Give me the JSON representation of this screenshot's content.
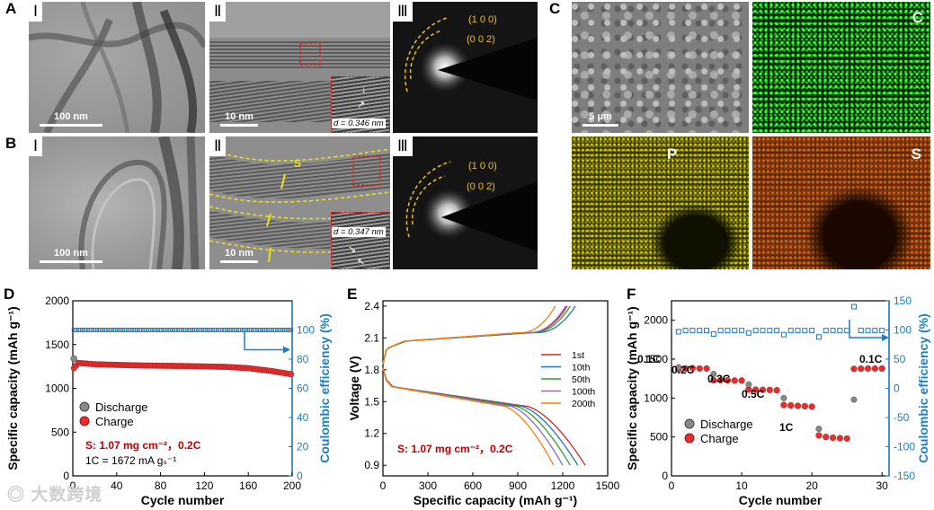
{
  "panel_labels": {
    "A": "A",
    "B": "B",
    "C": "C",
    "D": "D",
    "E": "E",
    "F": "F"
  },
  "panels": {
    "A": {
      "roman": [
        "Ⅰ",
        "Ⅱ",
        "Ⅲ"
      ],
      "scalebars": [
        "100 nm",
        "10 nm"
      ],
      "d_spacing": "d = 0.346 nm",
      "diffraction": [
        "(1 0 0)",
        "(0 0 2)"
      ]
    },
    "B": {
      "roman": [
        "Ⅰ",
        "Ⅱ",
        "Ⅲ"
      ],
      "scalebars": [
        "100 nm",
        "10 nm"
      ],
      "d_spacing": "d = 0.347 nm",
      "s_label": "S",
      "diffraction": [
        "(1 0 0)",
        "(0 0 2)"
      ]
    },
    "C": {
      "scalebar": "5 μm",
      "elements": [
        "C",
        "P",
        "S"
      ]
    }
  },
  "colors": {
    "red": "#d62728",
    "blue": "#1f77b4",
    "yellow": "#f0c020",
    "green": "#18c018",
    "olive": "#a8a400",
    "orange": "#c05a10",
    "darkred": "#c00000",
    "axisblue": "#1a7fc4"
  },
  "watermark": "大数跨境",
  "chart_data": [
    {
      "id": "D",
      "type": "scatter",
      "xlabel": "Cycle number",
      "ylabel": "Specific capacity (mAh g⁻¹)",
      "y2label": "Coulombic efficiency (%)",
      "xlim": [
        0,
        200
      ],
      "ylim": [
        0,
        2000
      ],
      "y2lim": [
        0,
        120
      ],
      "xticks": [
        0,
        40,
        80,
        120,
        160,
        200
      ],
      "yticks": [
        0,
        500,
        1000,
        1500,
        2000
      ],
      "y2ticks": [
        0,
        20,
        40,
        60,
        80,
        100
      ],
      "legend": [
        "Discharge",
        "Charge"
      ],
      "annotation1": "S: 1.07 mg cm⁻²，0.2C",
      "annotation2": "1C = 1672 mA gₛ⁻¹",
      "discharge_first": 1340,
      "charge_curve": [
        [
          1,
          1230
        ],
        [
          5,
          1290
        ],
        [
          20,
          1275
        ],
        [
          40,
          1268
        ],
        [
          60,
          1262
        ],
        [
          80,
          1258
        ],
        [
          100,
          1255
        ],
        [
          120,
          1250
        ],
        [
          140,
          1245
        ],
        [
          160,
          1230
        ],
        [
          180,
          1200
        ],
        [
          200,
          1160
        ]
      ],
      "ce": 100
    },
    {
      "id": "E",
      "type": "line",
      "xlabel": "Specific capacity (mAh g⁻¹)",
      "ylabel": "Voltage (V)",
      "xlim": [
        0,
        1500
      ],
      "ylim": [
        0.8,
        2.45
      ],
      "xticks": [
        0,
        300,
        600,
        900,
        1200,
        1500
      ],
      "yticks": [
        0.9,
        1.2,
        1.5,
        1.8,
        2.1,
        2.4
      ],
      "annotation": "S: 1.07 mg cm⁻²，0.2C",
      "series": [
        {
          "name": "1st",
          "color": "#d62728",
          "dmax": 1350,
          "cmax": 1230
        },
        {
          "name": "10th",
          "color": "#1f77b4",
          "dmax": 1300,
          "cmax": 1285
        },
        {
          "name": "50th",
          "color": "#2ca02c",
          "dmax": 1250,
          "cmax": 1250
        },
        {
          "name": "100th",
          "color": "#9467bd",
          "dmax": 1200,
          "cmax": 1220
        },
        {
          "name": "200th",
          "color": "#ff7f0e",
          "dmax": 1140,
          "cmax": 1150
        }
      ]
    },
    {
      "id": "F",
      "type": "scatter",
      "xlabel": "Cycle number",
      "ylabel": "Specific capacity (mAh g⁻¹)",
      "y2label": "Coulombic efficiency (%)",
      "xlim": [
        0,
        31
      ],
      "ylim": [
        0,
        2250
      ],
      "y2lim": [
        -150,
        150
      ],
      "xticks": [
        0,
        10,
        20,
        30
      ],
      "yticks": [
        0,
        500,
        1000,
        1500,
        2000
      ],
      "y2ticks": [
        -150,
        -100,
        -50,
        0,
        50,
        100,
        150
      ],
      "legend": [
        "Discharge",
        "Charge"
      ],
      "rates": [
        "0.1C",
        "0.2C",
        "0.3C",
        "0.5C",
        "1C",
        "0.1C"
      ],
      "discharge": [
        [
          1,
          1395
        ],
        [
          6,
          1310
        ],
        [
          11,
          1175
        ],
        [
          16,
          1000
        ],
        [
          21,
          605
        ],
        [
          26,
          980
        ]
      ],
      "charge": [
        [
          1,
          1370
        ],
        [
          2,
          1380
        ],
        [
          3,
          1385
        ],
        [
          4,
          1380
        ],
        [
          5,
          1380
        ],
        [
          6,
          1230
        ],
        [
          7,
          1230
        ],
        [
          8,
          1228
        ],
        [
          9,
          1225
        ],
        [
          10,
          1225
        ],
        [
          11,
          1110
        ],
        [
          12,
          1108
        ],
        [
          13,
          1106
        ],
        [
          14,
          1104
        ],
        [
          15,
          1100
        ],
        [
          16,
          910
        ],
        [
          17,
          905
        ],
        [
          18,
          900
        ],
        [
          19,
          895
        ],
        [
          20,
          890
        ],
        [
          21,
          520
        ],
        [
          22,
          500
        ],
        [
          23,
          490
        ],
        [
          24,
          485
        ],
        [
          25,
          480
        ],
        [
          26,
          1375
        ],
        [
          27,
          1378
        ],
        [
          28,
          1380
        ],
        [
          29,
          1380
        ],
        [
          30,
          1380
        ]
      ],
      "ce": [
        [
          1,
          97
        ],
        [
          2,
          99
        ],
        [
          3,
          99
        ],
        [
          4,
          99
        ],
        [
          5,
          99
        ],
        [
          6,
          93
        ],
        [
          7,
          99
        ],
        [
          8,
          99
        ],
        [
          9,
          99
        ],
        [
          10,
          99
        ],
        [
          11,
          95
        ],
        [
          12,
          99
        ],
        [
          13,
          99
        ],
        [
          14,
          99
        ],
        [
          15,
          99
        ],
        [
          16,
          92
        ],
        [
          17,
          99
        ],
        [
          18,
          99
        ],
        [
          19,
          99
        ],
        [
          20,
          99
        ],
        [
          21,
          88
        ],
        [
          22,
          99
        ],
        [
          23,
          99
        ],
        [
          24,
          99
        ],
        [
          25,
          99
        ],
        [
          26,
          140
        ],
        [
          27,
          99
        ],
        [
          28,
          99
        ],
        [
          29,
          99
        ],
        [
          30,
          99
        ]
      ]
    }
  ]
}
